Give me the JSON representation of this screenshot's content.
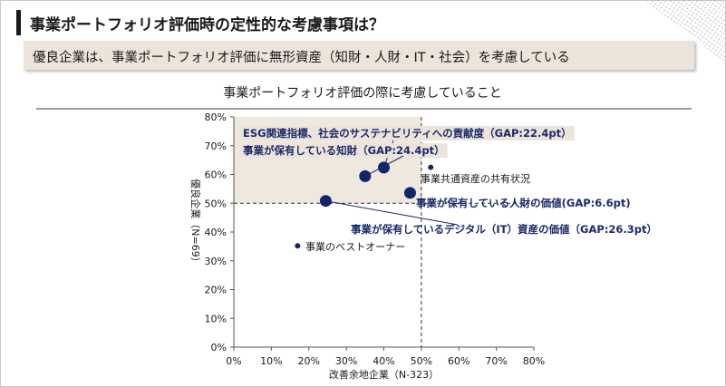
{
  "header": {
    "title": "事業ポートフォリオ評価時の定性的な考慮事項は？",
    "banner": "優良企業は、事業ポートフォリオ評価に無形資産（知財・人財・IT・社会）を考慮している"
  },
  "chart_data": {
    "type": "scatter",
    "title": "事業ポートフォリオ評価の際に考慮していること",
    "xlabel": "改善余地企業（N-323）",
    "ylabel": "優良企業（N=69）",
    "xlim": [
      0,
      80
    ],
    "ylim": [
      0,
      80
    ],
    "xticks": [
      "0%",
      "10%",
      "20%",
      "30%",
      "40%",
      "50%",
      "60%",
      "70%",
      "80%"
    ],
    "yticks": [
      "0%",
      "10%",
      "20%",
      "30%",
      "40%",
      "50%",
      "60%",
      "70%",
      "80%"
    ],
    "reference_lines": {
      "x": 50,
      "y": 50
    },
    "highlight_quadrant": "upper-left",
    "points": [
      {
        "label": "ESG関連指標、社会のサステナビリティへの貢献度（GAP:22.4pt）",
        "x": 40,
        "y": 62.4,
        "emphasis": true
      },
      {
        "label": "事業が保有している知財（GAP:24.4pt）",
        "x": 35,
        "y": 59.4,
        "emphasis": true
      },
      {
        "label": "事業共通資産の共有状況",
        "x": 52.5,
        "y": 62.5,
        "emphasis": false
      },
      {
        "label": "事業が保有している人財の価値(GAP:6.6pt)",
        "x": 47,
        "y": 53.6,
        "emphasis": true
      },
      {
        "label": "事業が保有しているデジタル（IT）資産の価値（GAP:26.3pt）",
        "x": 24.5,
        "y": 50.8,
        "emphasis": true
      },
      {
        "label": "事業のベストオーナー",
        "x": 17,
        "y": 35.2,
        "emphasis": false
      }
    ]
  }
}
